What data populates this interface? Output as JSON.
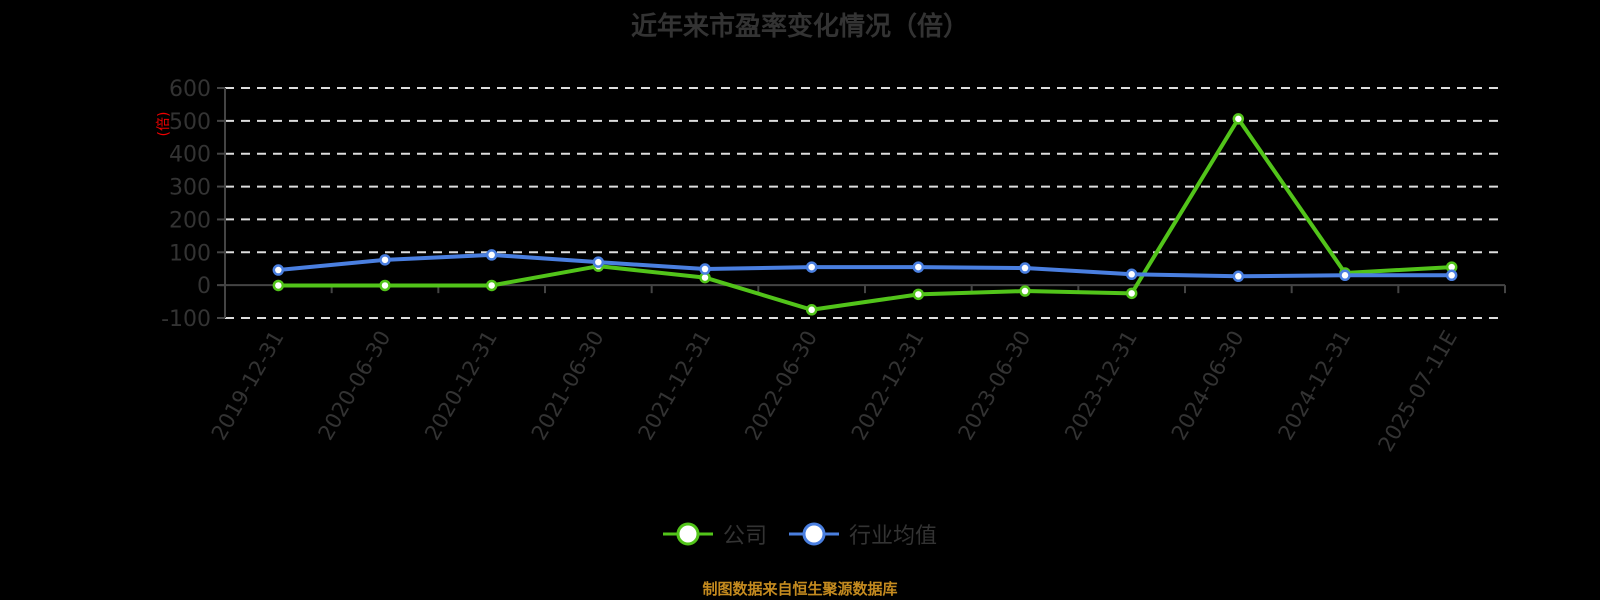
{
  "title": "近年来市盈率变化情况（倍）",
  "source_note": "制图数据来自恒生聚源数据库",
  "legend": [
    {
      "label": "公司",
      "color": "#52c41a"
    },
    {
      "label": "行业均值",
      "color": "#4a7fe0"
    }
  ],
  "chart_data": {
    "type": "line",
    "title": "近年来市盈率变化情况（倍）",
    "xlabel": "",
    "ylabel": "(倍)",
    "ylim": [
      -100,
      600
    ],
    "yticks": [
      600,
      500,
      400,
      300,
      200,
      100,
      0,
      -100
    ],
    "grid": true,
    "legend_position": "bottom",
    "categories": [
      "2019-12-31",
      "2020-06-30",
      "2020-12-31",
      "2021-06-30",
      "2021-12-31",
      "2022-06-30",
      "2022-12-31",
      "2023-06-30",
      "2023-12-31",
      "2024-06-30",
      "2024-12-31",
      "2025-07-11E"
    ],
    "series": [
      {
        "name": "公司",
        "color": "#52c41a",
        "values": [
          -1,
          -1,
          -1,
          57.76,
          23,
          -75,
          -28,
          -18,
          -25,
          506,
          37,
          55
        ]
      },
      {
        "name": "行业均值",
        "color": "#4a7fe0",
        "values": [
          46,
          77,
          92,
          70,
          49,
          55,
          55,
          52,
          33,
          27,
          30,
          30
        ]
      }
    ]
  }
}
